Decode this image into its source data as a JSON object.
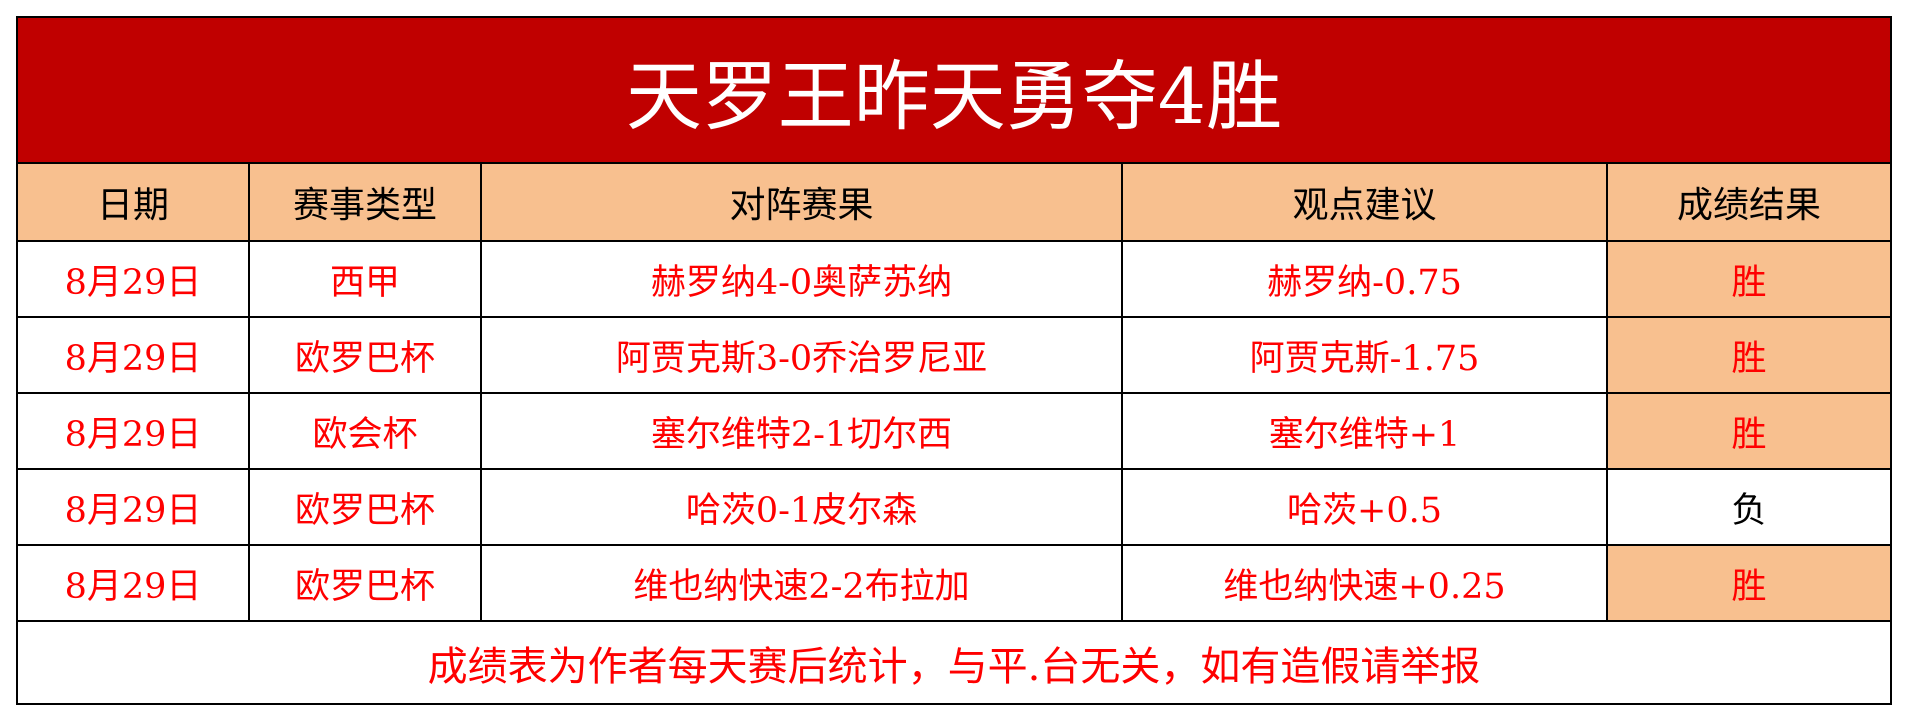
{
  "title": "天罗王昨天勇夺4胜",
  "headers": [
    "日期",
    "赛事类型",
    "对阵赛果",
    "观点建议",
    "成绩结果"
  ],
  "rows": [
    {
      "date": "8月29日",
      "league": "西甲",
      "match": "赫罗纳4-0奥萨苏纳",
      "tip": "赫罗纳-0.75",
      "result": "胜"
    },
    {
      "date": "8月29日",
      "league": "欧罗巴杯",
      "match": "阿贾克斯3-0乔治罗尼亚",
      "tip": "阿贾克斯-1.75",
      "result": "胜"
    },
    {
      "date": "8月29日",
      "league": "欧会杯",
      "match": "塞尔维特2-1切尔西",
      "tip": "塞尔维特+1",
      "result": "胜"
    },
    {
      "date": "8月29日",
      "league": "欧罗巴杯",
      "match": "哈茨0-1皮尔森",
      "tip": "哈茨+0.5",
      "result": "负"
    },
    {
      "date": "8月29日",
      "league": "欧罗巴杯",
      "match": "维也纳快速2-2布拉加",
      "tip": "维也纳快速+0.25",
      "result": "胜"
    }
  ],
  "footer": "成绩表为作者每天赛后统计，与平.台无关，如有造假请举报",
  "colors": {
    "title_bg": "#c00000",
    "header_bg": "#f8c08f",
    "win_bg": "#f8c08f",
    "text_red": "#ff0000"
  }
}
